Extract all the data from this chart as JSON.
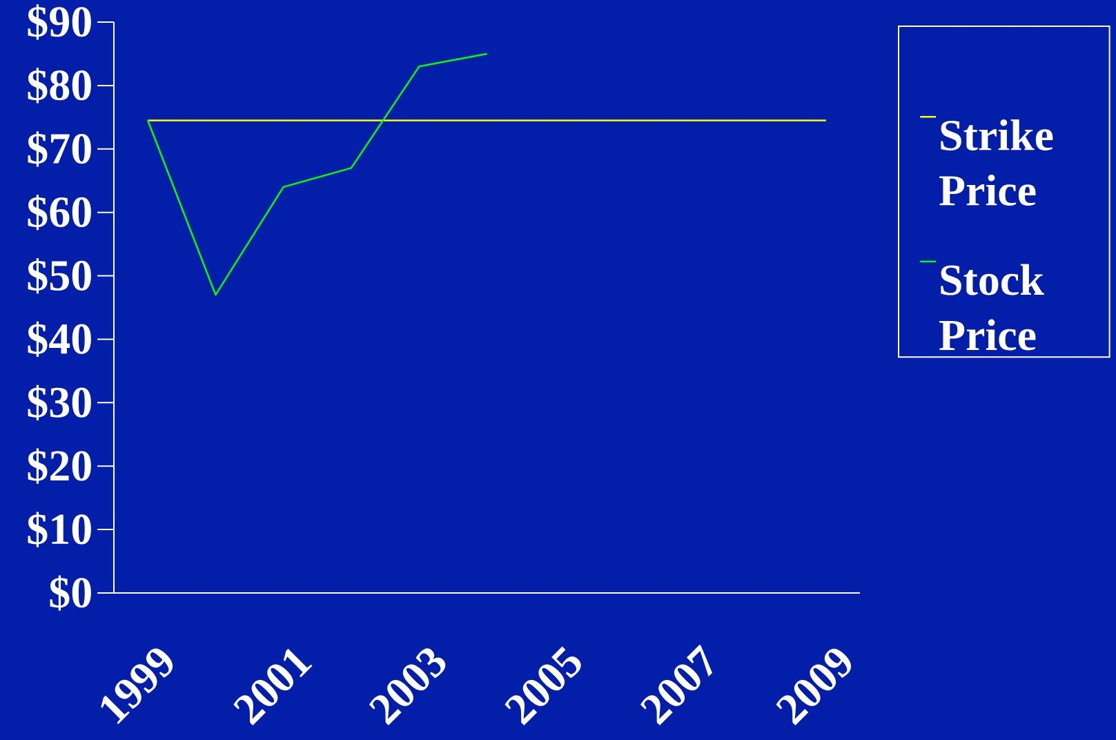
{
  "chart_data": {
    "type": "line",
    "categories": [
      "1999",
      null,
      "2001",
      null,
      "2003",
      null,
      "2005",
      null,
      "2007",
      null,
      "2009"
    ],
    "series": [
      {
        "name": "Strike Price",
        "color": "#ffff00",
        "values": [
          74.5,
          74.5,
          74.5,
          74.5,
          74.5,
          74.5,
          74.5,
          74.5,
          74.5,
          74.5,
          74.5
        ]
      },
      {
        "name": "Stock Price",
        "color": "#00ff00",
        "values": [
          74.5,
          47,
          64,
          67,
          83,
          85,
          null,
          null,
          null,
          null,
          null
        ]
      }
    ],
    "ylim": [
      0,
      90
    ],
    "yticks": [
      {
        "value": 0,
        "label": "$0"
      },
      {
        "value": 10,
        "label": "$10"
      },
      {
        "value": 20,
        "label": "$20"
      },
      {
        "value": 30,
        "label": "$30"
      },
      {
        "value": 40,
        "label": "$40"
      },
      {
        "value": 50,
        "label": "$50"
      },
      {
        "value": 60,
        "label": "$60"
      },
      {
        "value": 70,
        "label": "$70"
      },
      {
        "value": 80,
        "label": "$80"
      },
      {
        "value": 90,
        "label": "$90"
      }
    ],
    "legend": "right"
  }
}
